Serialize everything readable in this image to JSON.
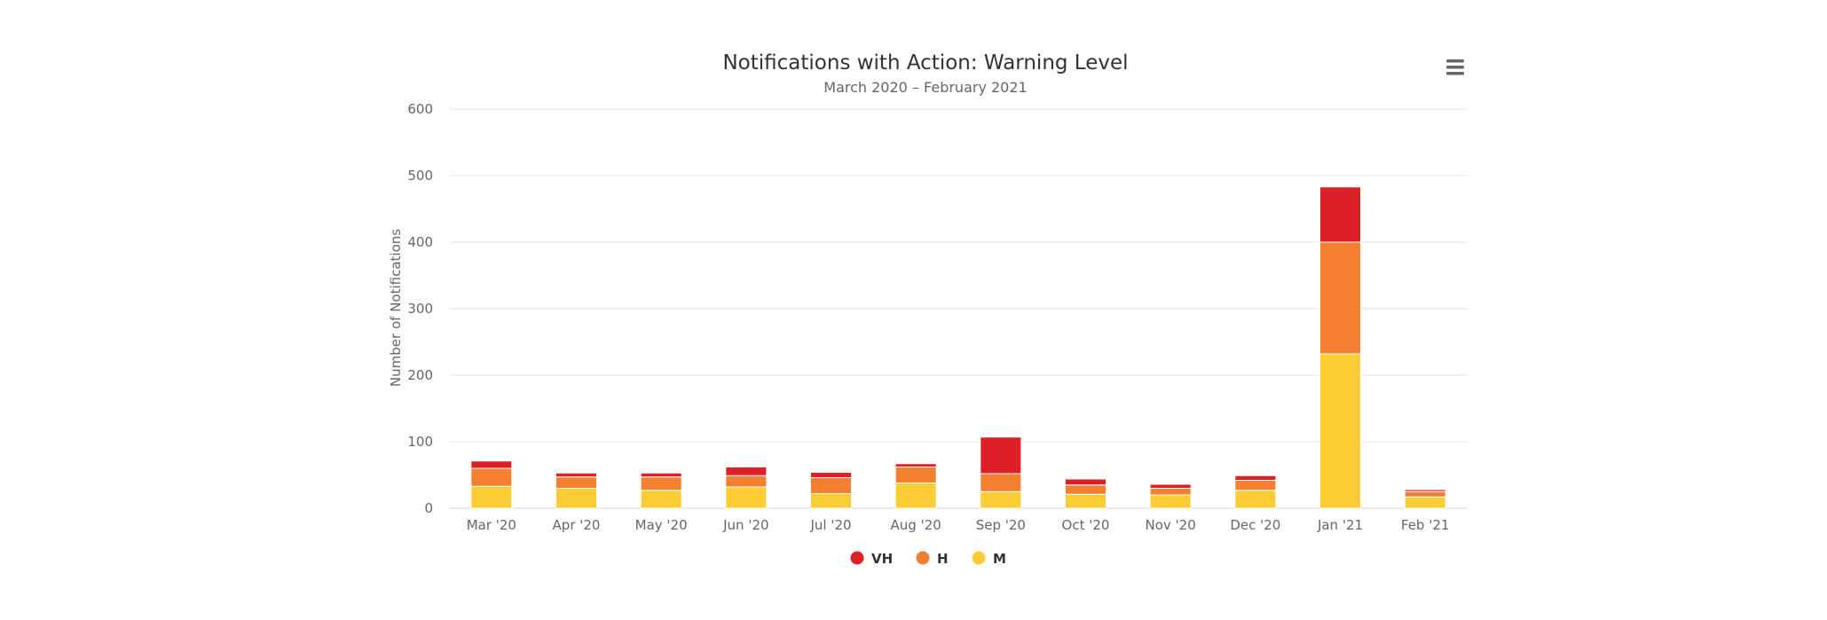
{
  "chart_data": {
    "type": "bar",
    "stacked": true,
    "title": "Notifications with Action: Warning Level",
    "subtitle": "March 2020 – February 2021",
    "xlabel": "",
    "ylabel": "Number of Notifications",
    "ylim": [
      0,
      600
    ],
    "yticks": [
      0,
      100,
      200,
      300,
      400,
      500,
      600
    ],
    "grid": true,
    "legend_position": "bottom-center",
    "categories": [
      "Mar '20",
      "Apr '20",
      "May '20",
      "Jun '20",
      "Jul '20",
      "Aug '20",
      "Sep '20",
      "Oct '20",
      "Nov '20",
      "Dec '20",
      "Jan '21",
      "Feb '21"
    ],
    "series": [
      {
        "name": "VH",
        "color": "#dd2027",
        "values": [
          11,
          6,
          6,
          13,
          8,
          5,
          55,
          9,
          6,
          7,
          83,
          3
        ]
      },
      {
        "name": "H",
        "color": "#f47f31",
        "values": [
          27,
          17,
          20,
          17,
          24,
          24,
          27,
          14,
          10,
          15,
          168,
          8
        ]
      },
      {
        "name": "M",
        "color": "#fecd36",
        "values": [
          33,
          30,
          27,
          32,
          22,
          38,
          25,
          21,
          20,
          27,
          232,
          17
        ]
      }
    ]
  },
  "menu": {
    "icon": "hamburger-menu-icon"
  }
}
